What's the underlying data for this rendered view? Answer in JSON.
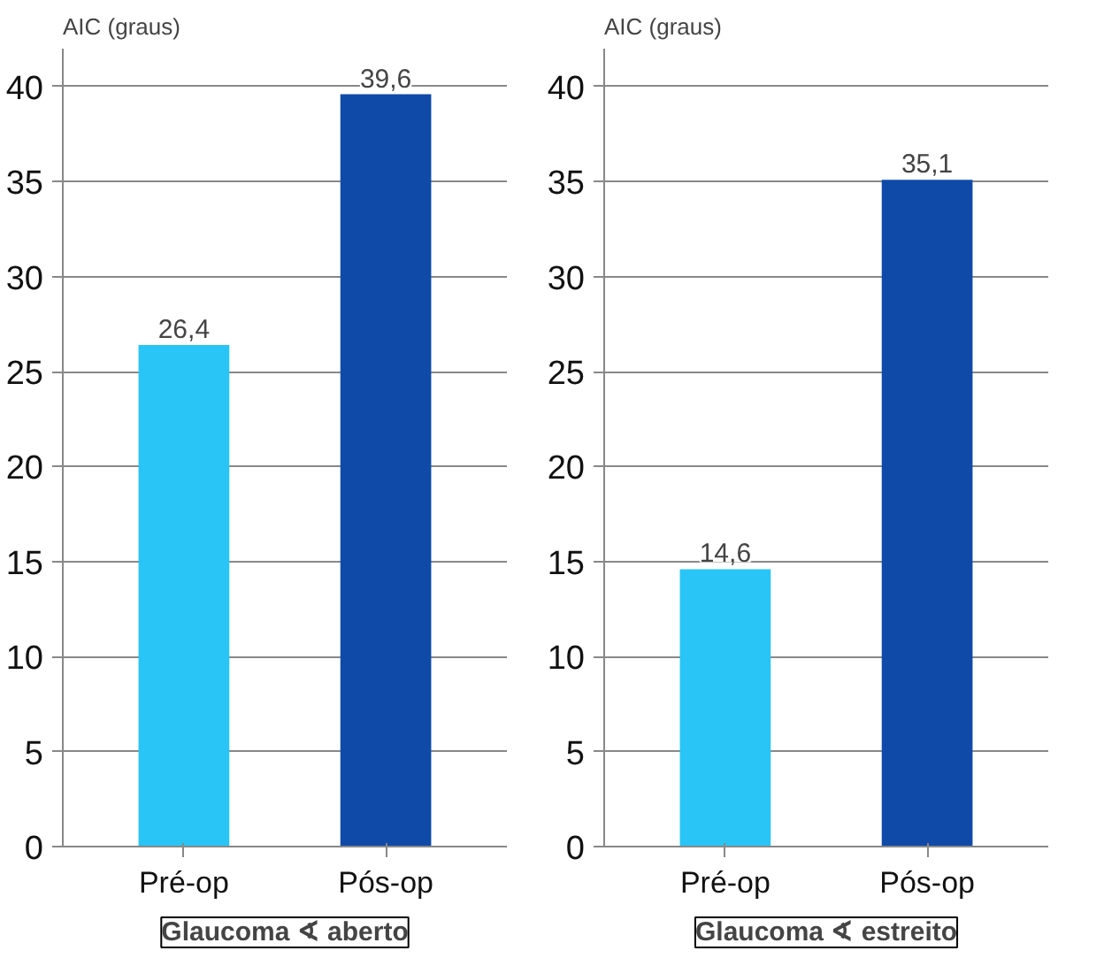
{
  "chart_data": [
    {
      "type": "bar",
      "title": "Glaucoma ∢ aberto",
      "ylabel": "AIC (graus)",
      "categories": [
        "Pré-op",
        "Pós-op"
      ],
      "values": [
        26.4,
        39.6
      ],
      "colors": [
        "#29c5f6",
        "#0f4aa8"
      ],
      "value_labels": [
        "26,4",
        "39,6"
      ],
      "ylim": [
        0,
        42
      ],
      "yticks": [
        0,
        5,
        10,
        15,
        20,
        25,
        30,
        35,
        40
      ],
      "grid": "y"
    },
    {
      "type": "bar",
      "title": "Glaucoma ∢ estreito",
      "ylabel": "AIC (graus)",
      "categories": [
        "Pré-op",
        "Pós-op"
      ],
      "values": [
        14.6,
        35.1
      ],
      "colors": [
        "#29c5f6",
        "#0f4aa8"
      ],
      "value_labels": [
        "14,6",
        "35,1"
      ],
      "ylim": [
        0,
        42
      ],
      "yticks": [
        0,
        5,
        10,
        15,
        20,
        25,
        30,
        35,
        40
      ],
      "grid": "y"
    }
  ]
}
